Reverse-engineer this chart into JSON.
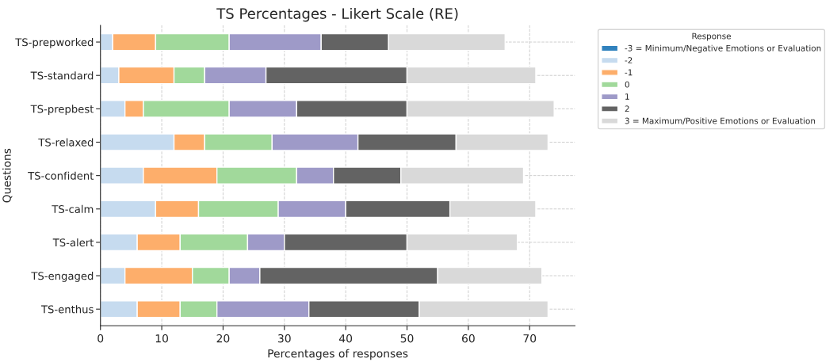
{
  "chart_data": {
    "type": "bar",
    "orientation": "horizontal",
    "stacked": true,
    "title": "TS Percentages - Likert Scale (RE)",
    "xlabel": "Percentages of responses",
    "ylabel": "Questions",
    "legend_title": "Response",
    "categories": [
      "TS-prepworked",
      "TS-standard",
      "TS-prepbest",
      "TS-relaxed",
      "TS-confident",
      "TS-calm",
      "TS-alert",
      "TS-engaged",
      "TS-enthus"
    ],
    "series": [
      {
        "name": "-3 = Minimum/Negative Emotions or Evaluation",
        "color": "#3182bd",
        "values": [
          0,
          0,
          0,
          0,
          0,
          0,
          0,
          0,
          0
        ]
      },
      {
        "name": "-2",
        "color": "#c6dbef",
        "values": [
          2,
          3,
          4,
          12,
          7,
          9,
          6,
          4,
          6
        ]
      },
      {
        "name": "-1",
        "color": "#fdae6b",
        "values": [
          7,
          9,
          3,
          5,
          12,
          7,
          7,
          11,
          7
        ]
      },
      {
        "name": "0",
        "color": "#a1d99b",
        "values": [
          12,
          5,
          14,
          11,
          13,
          13,
          11,
          6,
          6
        ]
      },
      {
        "name": "1",
        "color": "#9e9ac8",
        "values": [
          15,
          10,
          11,
          14,
          6,
          11,
          6,
          5,
          15
        ]
      },
      {
        "name": "2",
        "color": "#636363",
        "values": [
          11,
          23,
          18,
          16,
          11,
          17,
          20,
          29,
          18
        ]
      },
      {
        "name": "3 = Maximum/Positive Emotions or Evaluation",
        "color": "#d9d9d9",
        "values": [
          19,
          21,
          24,
          15,
          20,
          14,
          18,
          17,
          21
        ]
      }
    ],
    "xlim": [
      0,
      77.4
    ],
    "xticks": [
      0,
      10,
      20,
      30,
      40,
      50,
      60,
      70
    ],
    "grid": true,
    "legend": "top right"
  }
}
